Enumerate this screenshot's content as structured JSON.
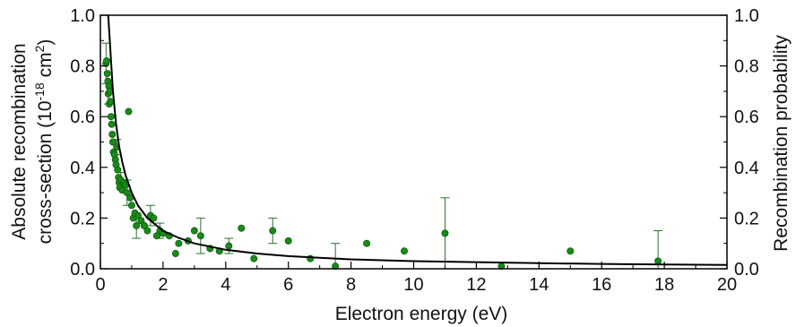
{
  "chart_data": {
    "type": "scatter",
    "xlabel": "Electron energy (eV)",
    "ylabel_left_line1": "Absolute recombination",
    "ylabel_left_line2": "cross-section (10",
    "ylabel_left_exp1": "-18",
    "ylabel_left_unit": " cm",
    "ylabel_left_exp2": "2",
    "ylabel_left_close": ")",
    "ylabel_right": "Recombination probability",
    "xlim": [
      0,
      20
    ],
    "ylim": [
      0,
      1.0
    ],
    "x_ticks": [
      0,
      2,
      4,
      6,
      8,
      10,
      12,
      14,
      16,
      18,
      20
    ],
    "y_ticks": [
      0.0,
      0.2,
      0.4,
      0.6,
      0.8,
      1.0
    ],
    "y_tick_labels": [
      "0.0",
      "0.2",
      "0.4",
      "0.6",
      "0.8",
      "1.0"
    ],
    "y_right_ticks": [
      0.0,
      0.2,
      0.4,
      0.6,
      0.8,
      1.0
    ],
    "y_right_tick_labels": [
      "0.0",
      "0.2",
      "0.4",
      "0.6",
      "0.8",
      "1.0"
    ],
    "grid": false,
    "colors": {
      "points": "#1a8a1a",
      "point_edge": "#0b5e0b",
      "error_bars": "#2e6e2e",
      "fit": "#000000"
    },
    "fit_curve": {
      "x": [
        0.25,
        0.3,
        0.35,
        0.4,
        0.5,
        0.6,
        0.7,
        0.8,
        1.0,
        1.2,
        1.5,
        2.0,
        2.5,
        3.0,
        4.0,
        5.0,
        6.0,
        7.0,
        8.0,
        10.0,
        12.0,
        14.0,
        16.0,
        18.0,
        20.0
      ],
      "y": [
        1.0,
        0.9,
        0.8,
        0.7,
        0.57,
        0.48,
        0.42,
        0.37,
        0.3,
        0.25,
        0.2,
        0.15,
        0.122,
        0.1,
        0.075,
        0.06,
        0.05,
        0.043,
        0.037,
        0.03,
        0.026,
        0.022,
        0.019,
        0.017,
        0.015
      ]
    },
    "series": [
      {
        "points": [
          {
            "x": 0.18,
            "y": 0.81,
            "err": 0.08
          },
          {
            "x": 0.2,
            "y": 0.82
          },
          {
            "x": 0.22,
            "y": 0.77
          },
          {
            "x": 0.24,
            "y": 0.74
          },
          {
            "x": 0.25,
            "y": 0.69,
            "err": 0.04
          },
          {
            "x": 0.27,
            "y": 0.72
          },
          {
            "x": 0.28,
            "y": 0.65
          },
          {
            "x": 0.3,
            "y": 0.7
          },
          {
            "x": 0.32,
            "y": 0.66
          },
          {
            "x": 0.34,
            "y": 0.6
          },
          {
            "x": 0.36,
            "y": 0.57
          },
          {
            "x": 0.38,
            "y": 0.53
          },
          {
            "x": 0.4,
            "y": 0.5
          },
          {
            "x": 0.42,
            "y": 0.46
          },
          {
            "x": 0.45,
            "y": 0.45
          },
          {
            "x": 0.48,
            "y": 0.43
          },
          {
            "x": 0.5,
            "y": 0.41
          },
          {
            "x": 0.52,
            "y": 0.48,
            "err": 0.03
          },
          {
            "x": 0.55,
            "y": 0.39
          },
          {
            "x": 0.58,
            "y": 0.36
          },
          {
            "x": 0.6,
            "y": 0.34
          },
          {
            "x": 0.62,
            "y": 0.32
          },
          {
            "x": 0.65,
            "y": 0.35,
            "err": 0.03
          },
          {
            "x": 0.7,
            "y": 0.31
          },
          {
            "x": 0.75,
            "y": 0.34
          },
          {
            "x": 0.8,
            "y": 0.33
          },
          {
            "x": 0.85,
            "y": 0.3,
            "err": 0.05
          },
          {
            "x": 0.9,
            "y": 0.62
          },
          {
            "x": 0.95,
            "y": 0.28
          },
          {
            "x": 1.0,
            "y": 0.25
          },
          {
            "x": 1.05,
            "y": 0.2
          },
          {
            "x": 1.1,
            "y": 0.22
          },
          {
            "x": 1.15,
            "y": 0.17,
            "err": 0.05
          },
          {
            "x": 1.2,
            "y": 0.21
          },
          {
            "x": 1.3,
            "y": 0.19
          },
          {
            "x": 1.4,
            "y": 0.17
          },
          {
            "x": 1.5,
            "y": 0.15
          },
          {
            "x": 1.6,
            "y": 0.21,
            "err": 0.04
          },
          {
            "x": 1.7,
            "y": 0.2
          },
          {
            "x": 1.8,
            "y": 0.13
          },
          {
            "x": 1.9,
            "y": 0.15,
            "err": 0.03
          },
          {
            "x": 2.0,
            "y": 0.14
          },
          {
            "x": 2.2,
            "y": 0.13
          },
          {
            "x": 2.4,
            "y": 0.06
          },
          {
            "x": 2.5,
            "y": 0.1
          },
          {
            "x": 2.8,
            "y": 0.11
          },
          {
            "x": 3.0,
            "y": 0.15
          },
          {
            "x": 3.2,
            "y": 0.13,
            "err": 0.07
          },
          {
            "x": 3.5,
            "y": 0.08
          },
          {
            "x": 3.8,
            "y": 0.07
          },
          {
            "x": 4.1,
            "y": 0.09,
            "err": 0.03
          },
          {
            "x": 4.5,
            "y": 0.16
          },
          {
            "x": 4.9,
            "y": 0.04
          },
          {
            "x": 5.5,
            "y": 0.15,
            "err": 0.05
          },
          {
            "x": 6.0,
            "y": 0.11
          },
          {
            "x": 6.7,
            "y": 0.04
          },
          {
            "x": 7.5,
            "y": 0.01,
            "err": 0.09
          },
          {
            "x": 8.5,
            "y": 0.1
          },
          {
            "x": 9.7,
            "y": 0.07
          },
          {
            "x": 11.0,
            "y": 0.14,
            "err": 0.14
          },
          {
            "x": 12.8,
            "y": 0.01
          },
          {
            "x": 15.0,
            "y": 0.07
          },
          {
            "x": 17.8,
            "y": 0.03,
            "err": 0.12
          }
        ]
      }
    ]
  }
}
